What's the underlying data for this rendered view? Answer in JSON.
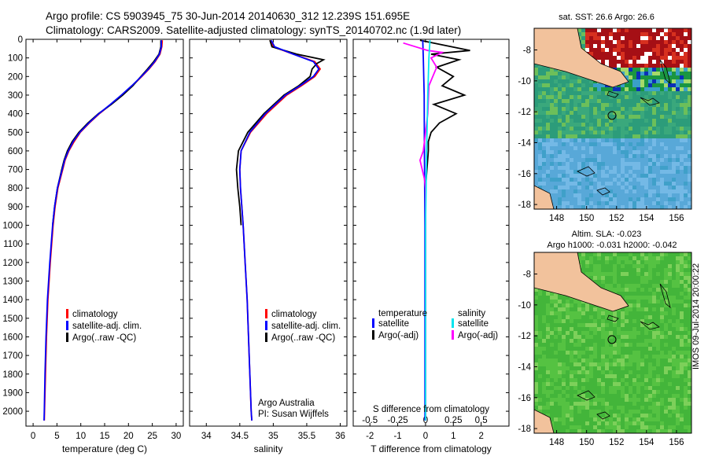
{
  "title": {
    "line1": "Argo profile: CS 5903945_75 30-Jun-2014 20140630_312 12.239S 151.695E",
    "line2": "Climatology: CARS2009. Satellite-adjusted climatology: synTS_20140702.nc (1.9d later)"
  },
  "colors": {
    "climatology": "#ff0000",
    "satellite": "#0000ff",
    "argo": "#000000",
    "satellite_s": "#00e5ee",
    "argo_s": "#ff00ff",
    "land": "#f2c29c"
  },
  "chart_data": [
    {
      "type": "line",
      "panel": "temperature",
      "xlabel": "temperature (deg C)",
      "ylabel": "",
      "xlim": [
        -1.5,
        31.5
      ],
      "ylim": [
        2080,
        0
      ],
      "xticks": [
        "0",
        "5",
        "10",
        "15",
        "20",
        "25",
        "30"
      ],
      "yticks": [
        "0",
        "100",
        "200",
        "300",
        "400",
        "500",
        "600",
        "700",
        "800",
        "900",
        "1000",
        "1100",
        "1200",
        "1300",
        "1400",
        "1500",
        "1600",
        "1700",
        "1800",
        "1900",
        "2000"
      ],
      "legend": [
        "climatology",
        "satellite-adj. clim.",
        "Argo(..raw -QC)"
      ],
      "series": [
        {
          "name": "climatology",
          "depth": [
            5,
            40,
            80,
            120,
            160,
            200,
            250,
            300,
            350,
            400,
            450,
            500,
            550,
            600,
            650,
            700,
            800,
            900,
            1000,
            1200,
            1400,
            1600,
            1800,
            2000,
            2050
          ],
          "values": [
            27.1,
            27.0,
            26.6,
            25.6,
            24.3,
            22.8,
            20.8,
            18.6,
            16.3,
            13.9,
            11.8,
            9.9,
            8.6,
            7.5,
            6.7,
            6.2,
            5.2,
            4.6,
            4.2,
            3.6,
            3.1,
            2.8,
            2.6,
            2.4,
            2.35
          ]
        },
        {
          "name": "satellite-adj. clim.",
          "depth": [
            5,
            40,
            80,
            120,
            160,
            200,
            250,
            300,
            350,
            400,
            450,
            500,
            550,
            600,
            650,
            700,
            800,
            900,
            1000,
            1200,
            1400,
            1600,
            1800,
            2000,
            2050
          ],
          "values": [
            26.9,
            26.9,
            26.5,
            25.5,
            24.2,
            22.7,
            20.7,
            18.5,
            16.2,
            13.8,
            11.7,
            9.8,
            8.4,
            7.4,
            6.6,
            6.1,
            5.1,
            4.5,
            4.1,
            3.5,
            3.0,
            2.7,
            2.5,
            2.35,
            2.3
          ]
        },
        {
          "name": "Argo(..raw -QC)",
          "depth": [
            5,
            40,
            80,
            120,
            160,
            200,
            250,
            300,
            350,
            400,
            450,
            500,
            550,
            600,
            650,
            700,
            800,
            900,
            1000
          ],
          "values": [
            26.8,
            26.8,
            26.4,
            25.3,
            24.0,
            22.6,
            20.9,
            18.8,
            16.4,
            13.7,
            11.5,
            9.6,
            8.2,
            7.2,
            6.5,
            6.0,
            5.1,
            4.5,
            4.1
          ]
        }
      ]
    },
    {
      "type": "line",
      "panel": "salinity",
      "xlabel": "salinity",
      "xlim": [
        33.75,
        36.1
      ],
      "ylim": [
        2080,
        0
      ],
      "xticks": [
        "34",
        "34.5",
        "35",
        "35.5",
        "36"
      ],
      "legend": [
        "climatology",
        "satellite-adj. clim.",
        "Argo(..raw -QC)"
      ],
      "annotation": [
        "Argo Australia",
        "PI: Susan Wijffels"
      ],
      "series": [
        {
          "name": "climatology",
          "depth": [
            5,
            40,
            80,
            120,
            160,
            200,
            250,
            300,
            400,
            500,
            600,
            700,
            800,
            900,
            1000,
            1200,
            1400,
            1600,
            1800,
            2000,
            2050
          ],
          "values": [
            34.95,
            35.0,
            35.3,
            35.62,
            35.7,
            35.62,
            35.42,
            35.2,
            34.9,
            34.66,
            34.52,
            34.5,
            34.51,
            34.53,
            34.55,
            34.58,
            34.61,
            34.63,
            34.65,
            34.67,
            34.68
          ]
        },
        {
          "name": "satellite-adj. clim.",
          "depth": [
            5,
            40,
            80,
            120,
            160,
            200,
            250,
            300,
            400,
            500,
            600,
            700,
            800,
            900,
            1000,
            1200,
            1400,
            1600,
            1800,
            2000,
            2050
          ],
          "values": [
            34.97,
            35.02,
            35.3,
            35.6,
            35.68,
            35.6,
            35.4,
            35.18,
            34.88,
            34.65,
            34.52,
            34.5,
            34.51,
            34.53,
            34.55,
            34.58,
            34.61,
            34.63,
            34.65,
            34.67,
            34.68
          ]
        },
        {
          "name": "Argo(..raw -QC)",
          "depth": [
            5,
            40,
            80,
            110,
            130,
            160,
            200,
            250,
            300,
            400,
            500,
            600,
            700,
            800,
            900,
            1000
          ],
          "values": [
            34.95,
            34.98,
            35.35,
            35.75,
            35.65,
            35.58,
            35.55,
            35.38,
            35.16,
            34.86,
            34.62,
            34.48,
            34.45,
            34.47,
            34.5,
            34.52
          ]
        }
      ]
    },
    {
      "type": "line",
      "panel": "difference",
      "xlabel": "T difference from climatology",
      "xlabel_top": "S difference from climatology",
      "xlim": [
        -2.6,
        3.0
      ],
      "ylim": [
        2080,
        0
      ],
      "xticks_T": [
        "-2",
        "-1",
        "0",
        "1",
        "2"
      ],
      "xticks_S": [
        "-0.5",
        "-0.25",
        "0",
        "0.25",
        "0.5"
      ],
      "legend": {
        "temperature_heading": "temperature",
        "salinity_heading": "salinity",
        "items": [
          "satellite",
          "Argo(-adj)",
          "satellite",
          "Argo(-adj)"
        ]
      },
      "series": [
        {
          "name": "T satellite",
          "depth": [
            5,
            100,
            300,
            600,
            1000,
            1500,
            2050
          ],
          "values": [
            -0.1,
            -0.08,
            -0.05,
            -0.04,
            -0.02,
            -0.02,
            -0.02
          ]
        },
        {
          "name": "T Argo(-adj)",
          "depth": [
            5,
            60,
            80,
            110,
            150,
            200,
            250,
            300,
            350,
            400,
            450,
            500,
            550,
            600,
            700,
            800,
            900,
            1000,
            1100,
            1200,
            1300,
            1400,
            1500,
            1600,
            1700,
            1800,
            1900,
            2000,
            2050
          ],
          "values": [
            -0.2,
            1.6,
            0.2,
            1.2,
            0.4,
            1.0,
            0.6,
            1.4,
            0.3,
            1.1,
            0.5,
            0.2,
            0.1,
            0.1,
            0.05,
            0.0,
            0.0,
            0.0,
            0.0,
            0.0,
            0.0,
            0.0,
            0.0,
            0.0,
            0.0,
            0.0,
            0.0,
            0.0,
            0.0
          ]
        },
        {
          "name": "S satellite",
          "depth": [
            5,
            100,
            300,
            600,
            1000,
            1500,
            2050
          ],
          "values": [
            0.04,
            0.03,
            0.02,
            0.01,
            0.0,
            0.0,
            0.0
          ]
        },
        {
          "name": "S Argo(-adj)",
          "depth": [
            20,
            60,
            70,
            100,
            150,
            250,
            400,
            600,
            650,
            700,
            750,
            800,
            1000,
            1200,
            1600,
            2050
          ],
          "values": [
            -0.2,
            0.02,
            0.15,
            0.05,
            0.1,
            0.03,
            0.02,
            -0.02,
            -0.05,
            -0.03,
            -0.01,
            0.0,
            0.0,
            0.0,
            0.0,
            0.0
          ]
        }
      ]
    },
    {
      "type": "heatmap",
      "panel": "map-sst",
      "title": "sat. SST: 26.6  Argo: 26.6",
      "xticks": [
        "148",
        "150",
        "152",
        "154",
        "156"
      ],
      "yticks": [
        "-8",
        "-10",
        "-12",
        "-14",
        "-16",
        "-18"
      ],
      "xlim": [
        146.5,
        157
      ],
      "ylim": [
        -18.3,
        -6.6
      ],
      "argo_position": {
        "lon": 151.695,
        "lat": -12.239
      }
    },
    {
      "type": "heatmap",
      "panel": "map-sla",
      "title": [
        "Altim. SLA: -0.023",
        "Argo h1000: -0.031 h2000: -0.042"
      ],
      "xticks": [
        "148",
        "150",
        "152",
        "154",
        "156"
      ],
      "yticks": [
        "-8",
        "-10",
        "-12",
        "-14",
        "-16",
        "-18"
      ],
      "xlim": [
        146.5,
        157
      ],
      "ylim": [
        -18.3,
        -6.6
      ],
      "argo_position": {
        "lon": 151.695,
        "lat": -12.239
      }
    }
  ],
  "side_stamp": "IMOS 09-Jul-2014 20:00:22"
}
